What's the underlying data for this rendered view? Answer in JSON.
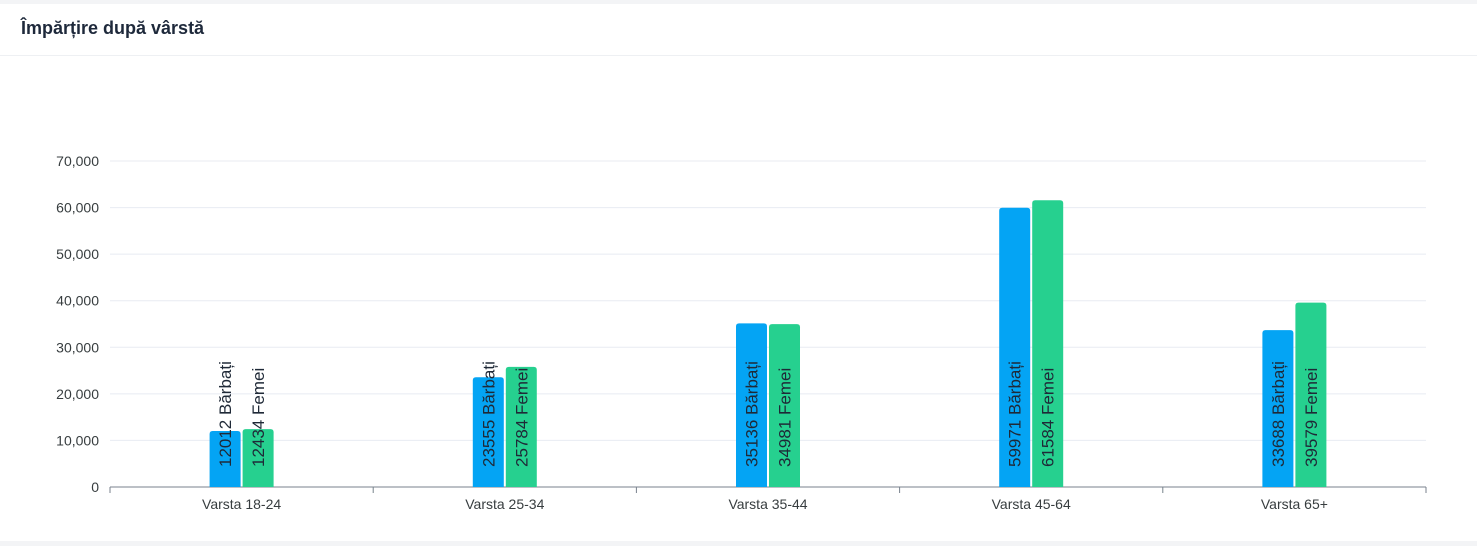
{
  "card": {
    "title": "Împărțire după vârstă"
  },
  "colors": {
    "series_0": "#04a4f4",
    "series_1": "#26d08f",
    "grid": "#e8ebf2",
    "axis": "#78828c",
    "text": "#373d3f"
  },
  "chart_data": {
    "type": "bar",
    "title": "Împărțire după vârstă",
    "xlabel": "",
    "ylabel": "",
    "ylim": [
      0,
      70000
    ],
    "yticks": [
      "0",
      "10,000",
      "20,000",
      "30,000",
      "40,000",
      "50,000",
      "60,000",
      "70,000"
    ],
    "ytick_values": [
      0,
      10000,
      20000,
      30000,
      40000,
      50000,
      60000,
      70000
    ],
    "categories": [
      "Varsta 18-24",
      "Varsta 25-34",
      "Varsta 35-44",
      "Varsta 45-64",
      "Varsta 65+"
    ],
    "grid": true,
    "legend": "none",
    "series": [
      {
        "name": "Bărbați",
        "values": [
          12012,
          23555,
          35136,
          59971,
          33688
        ],
        "labels": [
          "12012 Bărbați",
          "23555 Bărbați",
          "35136 Bărbați",
          "59971 Bărbați",
          "33688 Bărbați"
        ]
      },
      {
        "name": "Femei",
        "values": [
          12434,
          25784,
          34981,
          61584,
          39579
        ],
        "labels": [
          "12434 Femei",
          "25784 Femei",
          "34981 Femei",
          "61584 Femei",
          "39579 Femei"
        ]
      }
    ]
  }
}
